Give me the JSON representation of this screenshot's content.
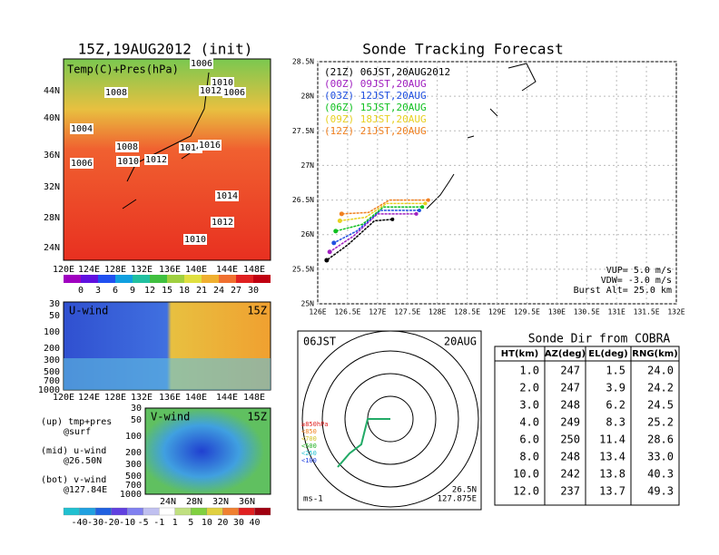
{
  "left_title": "15Z,19AUG2012 (init)",
  "map": {
    "label": "Temp(C)+Pres(hPa)",
    "yticks": [
      "44N",
      "40N",
      "36N",
      "32N",
      "28N",
      "24N"
    ],
    "xticks": [
      "120E",
      "124E",
      "128E",
      "132E",
      "136E",
      "140E",
      "144E",
      "148E"
    ],
    "isobars": [
      "1006",
      "1008",
      "1010",
      "1012",
      "1006",
      "1004",
      "1008",
      "1010",
      "1012",
      "1014",
      "1016",
      "1006",
      "1014",
      "1012",
      "1010"
    ],
    "colorbar": [
      "0",
      "3",
      "6",
      "9",
      "12",
      "15",
      "18",
      "21",
      "24",
      "27",
      "30"
    ]
  },
  "u_wind": {
    "label": "U-wind",
    "time": "15Z",
    "yticks": [
      "30",
      "50",
      "100",
      "200",
      "300",
      "500",
      "700",
      "1000"
    ],
    "xticks": [
      "120E",
      "124E",
      "128E",
      "132E",
      "136E",
      "140E",
      "144E",
      "148E"
    ]
  },
  "v_wind": {
    "label": "V-wind",
    "time": "15Z",
    "yticks": [
      "30",
      "50",
      "100",
      "200",
      "300",
      "500",
      "700",
      "1000"
    ],
    "xticks": [
      "24N",
      "28N",
      "32N",
      "36N"
    ]
  },
  "notes": [
    "(up) tmp+pres",
    "@surf",
    "(mid) u-wind",
    "@26.50N",
    "(bot) v-wind",
    "@127.84E"
  ],
  "wind_colorbar": [
    "-40",
    "-30",
    "-20",
    "-10",
    "-5",
    "-1",
    "1",
    "5",
    "10",
    "20",
    "30",
    "40"
  ],
  "chart_data": {
    "type": "line",
    "title": "Sonde Tracking Forecast",
    "xlim": [
      126,
      132
    ],
    "ylim": [
      25,
      28.5
    ],
    "xticks": [
      {
        "value": 126,
        "label": "126E"
      },
      {
        "value": 126.5,
        "label": "126.5E"
      },
      {
        "value": 127,
        "label": "127E"
      },
      {
        "value": 127.5,
        "label": "127.5E"
      },
      {
        "value": 128,
        "label": "128E"
      },
      {
        "value": 128.5,
        "label": "128.5E"
      },
      {
        "value": 129,
        "label": "129E"
      },
      {
        "value": 129.5,
        "label": "129.5E"
      },
      {
        "value": 130,
        "label": "130E"
      },
      {
        "value": 130.5,
        "label": "130.5E"
      },
      {
        "value": 131,
        "label": "131E"
      },
      {
        "value": 131.5,
        "label": "131.5E"
      },
      {
        "value": 132,
        "label": "132E"
      }
    ],
    "yticks": [
      {
        "value": 25,
        "label": "25N"
      },
      {
        "value": 25.5,
        "label": "25.5N"
      },
      {
        "value": 26,
        "label": "26N"
      },
      {
        "value": 26.5,
        "label": "26.5N"
      },
      {
        "value": 27,
        "label": "27N"
      },
      {
        "value": 27.5,
        "label": "27.5N"
      },
      {
        "value": 28,
        "label": "28N"
      },
      {
        "value": 28.5,
        "label": "28.5N"
      }
    ],
    "grid": true,
    "series": [
      {
        "name": "(21Z)  06JST,20AUG2012",
        "color": "#000000",
        "x": [
          127.25,
          126.95,
          126.5,
          126.15
        ],
        "values": [
          26.22,
          26.2,
          25.85,
          25.63
        ]
      },
      {
        "name": "(00Z)  09JST,20AUG",
        "color": "#a020c0",
        "x": [
          127.65,
          127.0,
          126.6,
          126.2
        ],
        "values": [
          26.3,
          26.3,
          25.98,
          25.75
        ]
      },
      {
        "name": "(03Z)  12JST,20AUG",
        "color": "#2050e0",
        "x": [
          127.7,
          127.05,
          126.65,
          126.27
        ],
        "values": [
          26.35,
          26.35,
          26.05,
          25.88
        ]
      },
      {
        "name": "(06Z)  15JST,20AUG",
        "color": "#10c020",
        "x": [
          127.75,
          127.1,
          126.75,
          126.3
        ],
        "values": [
          26.4,
          26.4,
          26.15,
          26.05
        ]
      },
      {
        "name": "(09Z)  18JST,20AUG",
        "color": "#e8d020",
        "x": [
          127.8,
          127.15,
          126.8,
          126.37
        ],
        "values": [
          26.45,
          26.45,
          26.25,
          26.2
        ]
      },
      {
        "name": "(12Z)  21JST,20AUG",
        "color": "#f08020",
        "x": [
          127.85,
          127.2,
          126.85,
          126.4
        ],
        "values": [
          26.5,
          26.5,
          26.32,
          26.3
        ]
      }
    ],
    "annotations": [
      "VUP=  5.0 m/s",
      "VDW= -3.0 m/s",
      "Burst Alt= 25.0 km"
    ]
  },
  "polar": {
    "time": "06JST",
    "date": "20AUG",
    "lat": "26.5N",
    "lon": "127.875E",
    "units": "ms-1",
    "levels": [
      "≥850hPa",
      "<850",
      "<700",
      "<500",
      "<250",
      "<100"
    ]
  },
  "table": {
    "title": "Sonde Dir from COBRA",
    "header": [
      "HT(km)",
      "AZ(deg)",
      "EL(deg)",
      "RNG(km)"
    ],
    "rows": [
      [
        "1.0",
        "247",
        "1.5",
        "24.0"
      ],
      [
        "2.0",
        "247",
        "3.9",
        "24.2"
      ],
      [
        "3.0",
        "248",
        "6.2",
        "24.5"
      ],
      [
        "4.0",
        "249",
        "8.3",
        "25.2"
      ],
      [
        "6.0",
        "250",
        "11.4",
        "28.6"
      ],
      [
        "8.0",
        "248",
        "13.4",
        "33.0"
      ],
      [
        "10.0",
        "242",
        "13.8",
        "40.3"
      ],
      [
        "12.0",
        "237",
        "13.7",
        "49.3"
      ]
    ]
  }
}
